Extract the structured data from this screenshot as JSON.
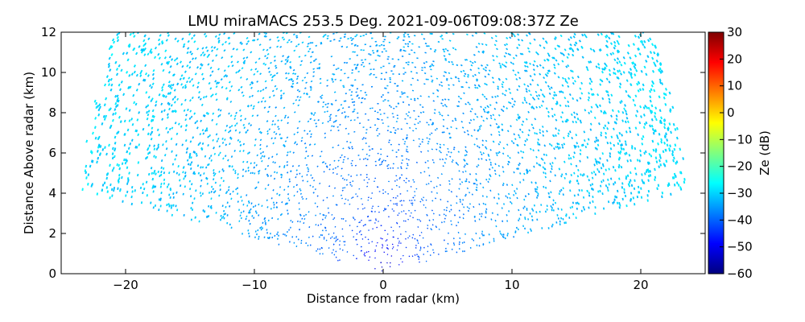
{
  "chart_data": {
    "type": "heatmap",
    "title": "LMU miraMACS 253.5 Deg. 2021-09-06T09:08:37Z  Ze",
    "xlabel": "Distance from radar (km)",
    "ylabel": "Distance Above radar  (km)",
    "xlim": [
      -25,
      25
    ],
    "ylim": [
      0,
      12
    ],
    "xticks": [
      "−20",
      "−10",
      "0",
      "10",
      "20"
    ],
    "xtick_values": [
      -20,
      -10,
      0,
      10,
      20
    ],
    "yticks": [
      "0",
      "2",
      "4",
      "6",
      "8",
      "10",
      "12"
    ],
    "ytick_values": [
      0,
      2,
      4,
      6,
      8,
      10,
      12
    ],
    "grid": false,
    "scan": {
      "min_elevation_deg": 10,
      "max_range_km": 24,
      "radar_position": [
        0,
        0
      ]
    },
    "ze_profile": [
      {
        "range_km": 0.5,
        "ze_db": -52
      },
      {
        "range_km": 2,
        "ze_db": -45
      },
      {
        "range_km": 4,
        "ze_db": -40
      },
      {
        "range_km": 8,
        "ze_db": -36
      },
      {
        "range_km": 14,
        "ze_db": -32
      },
      {
        "range_km": 20,
        "ze_db": -30
      },
      {
        "range_km": 24,
        "ze_db": -29
      }
    ],
    "colorbar": {
      "label": "Ze (dB)",
      "min": -60,
      "max": 30,
      "ticks": [
        "−60",
        "−50",
        "−40",
        "−30",
        "−20",
        "−10",
        "0",
        "10",
        "20",
        "30"
      ],
      "tick_values": [
        -60,
        -50,
        -40,
        -30,
        -20,
        -10,
        0,
        10,
        20,
        30
      ],
      "colormap": "jet",
      "colormap_stops": [
        "#00007f",
        "#0000ff",
        "#007fff",
        "#00ffff",
        "#7fff7f",
        "#ffff00",
        "#ff7f00",
        "#ff0000",
        "#7f0000"
      ]
    }
  }
}
